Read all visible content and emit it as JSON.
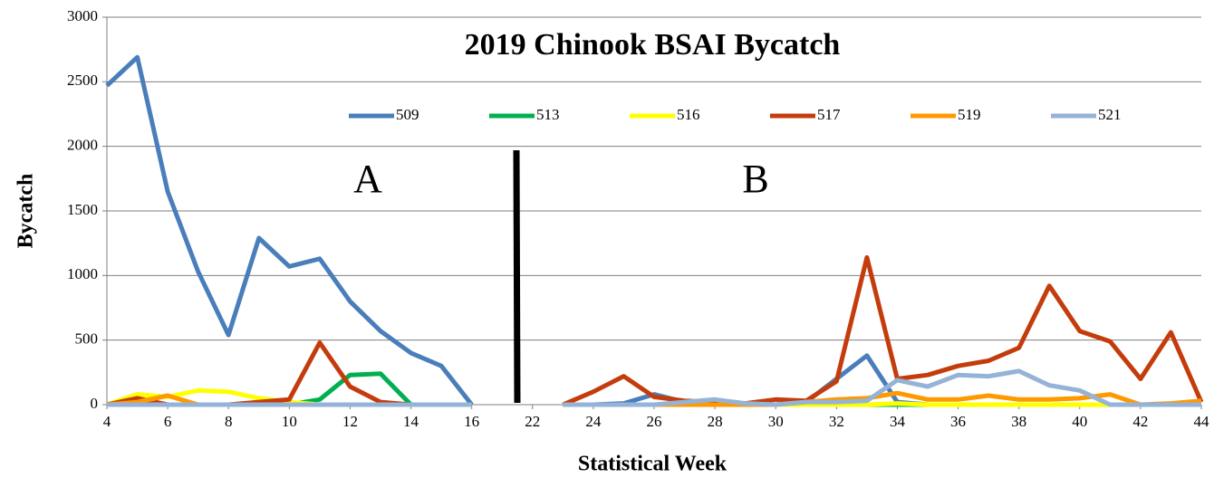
{
  "chart_data": {
    "type": "line",
    "title": "2019 Chinook BSAI Bycatch",
    "xlabel": "Statistical Week",
    "ylabel": "Bycatch",
    "annotations": [
      "A",
      "B"
    ],
    "categories": [
      4,
      null,
      6,
      null,
      8,
      null,
      10,
      null,
      12,
      null,
      14,
      null,
      16,
      null,
      22,
      null,
      24,
      null,
      26,
      null,
      28,
      null,
      30,
      null,
      32,
      null,
      34,
      null,
      36,
      null,
      38,
      null,
      40,
      null,
      42,
      null,
      44
    ],
    "ylim": [
      0,
      3000
    ],
    "yticks": [
      0,
      500,
      1000,
      1500,
      2000,
      2500,
      3000
    ],
    "grid": true,
    "legend": "top",
    "series": [
      {
        "name": "509",
        "color": "#4a7ebb",
        "values": [
          2470,
          2690,
          1650,
          1030,
          540,
          1290,
          1070,
          1130,
          800,
          570,
          400,
          300,
          0,
          null,
          null,
          0,
          0,
          10,
          80,
          20,
          20,
          10,
          0,
          20,
          200,
          380,
          20,
          0,
          0,
          0,
          0,
          0,
          0,
          0,
          0,
          0,
          0
        ]
      },
      {
        "name": "513",
        "color": "#00b050",
        "values": [
          0,
          0,
          0,
          0,
          0,
          0,
          0,
          40,
          230,
          240,
          0,
          0,
          0,
          null,
          null,
          0,
          0,
          0,
          0,
          0,
          0,
          0,
          0,
          0,
          0,
          0,
          0,
          0,
          0,
          0,
          0,
          0,
          0,
          0,
          0,
          0,
          0
        ]
      },
      {
        "name": "516",
        "color": "#ffff00",
        "values": [
          0,
          80,
          60,
          110,
          100,
          50,
          20,
          0,
          0,
          0,
          0,
          0,
          0,
          null,
          null,
          0,
          0,
          0,
          0,
          0,
          0,
          0,
          0,
          0,
          0,
          0,
          10,
          0,
          0,
          0,
          0,
          0,
          0,
          0,
          0,
          0,
          0
        ]
      },
      {
        "name": "517",
        "color": "#c43c0c",
        "values": [
          0,
          50,
          0,
          0,
          0,
          20,
          40,
          480,
          140,
          20,
          0,
          0,
          0,
          null,
          null,
          0,
          100,
          220,
          60,
          30,
          20,
          10,
          40,
          30,
          180,
          1140,
          200,
          230,
          300,
          340,
          440,
          920,
          570,
          490,
          200,
          560,
          20
        ]
      },
      {
        "name": "519",
        "color": "#ff9900",
        "values": [
          0,
          20,
          70,
          0,
          0,
          0,
          0,
          0,
          0,
          0,
          0,
          0,
          0,
          null,
          null,
          0,
          0,
          0,
          0,
          0,
          0,
          0,
          0,
          20,
          40,
          50,
          90,
          40,
          40,
          70,
          40,
          40,
          50,
          80,
          0,
          10,
          30
        ]
      },
      {
        "name": "521",
        "color": "#95b3d7",
        "values": [
          0,
          0,
          0,
          0,
          0,
          0,
          0,
          0,
          0,
          0,
          0,
          0,
          0,
          null,
          null,
          0,
          0,
          0,
          0,
          20,
          40,
          10,
          0,
          20,
          20,
          30,
          190,
          140,
          230,
          220,
          260,
          150,
          110,
          0,
          0,
          0,
          0
        ]
      }
    ]
  }
}
